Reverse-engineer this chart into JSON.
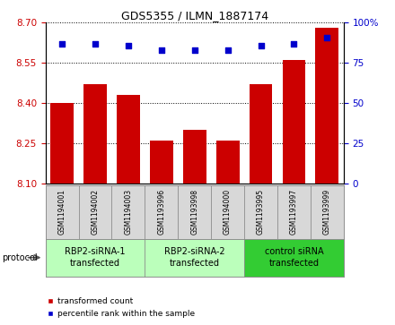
{
  "title": "GDS5355 / ILMN_1887174",
  "samples": [
    "GSM1194001",
    "GSM1194002",
    "GSM1194003",
    "GSM1193996",
    "GSM1193998",
    "GSM1194000",
    "GSM1193995",
    "GSM1193997",
    "GSM1193999"
  ],
  "red_values": [
    8.4,
    8.47,
    8.43,
    8.26,
    8.3,
    8.26,
    8.47,
    8.56,
    8.68
  ],
  "blue_values": [
    87,
    87,
    86,
    83,
    83,
    83,
    86,
    87,
    91
  ],
  "ylim_left": [
    8.1,
    8.7
  ],
  "ylim_right": [
    0,
    100
  ],
  "yticks_left": [
    8.1,
    8.25,
    8.4,
    8.55,
    8.7
  ],
  "yticks_right": [
    0,
    25,
    50,
    75,
    100
  ],
  "bar_color": "#cc0000",
  "dot_color": "#0000cc",
  "groups": [
    {
      "label": "RBP2-siRNA-1\ntransfected",
      "indices": [
        0,
        1,
        2
      ],
      "color": "#bbffbb"
    },
    {
      "label": "RBP2-siRNA-2\ntransfected",
      "indices": [
        3,
        4,
        5
      ],
      "color": "#bbffbb"
    },
    {
      "label": "control siRNA\ntransfected",
      "indices": [
        6,
        7,
        8
      ],
      "color": "#33cc33"
    }
  ],
  "protocol_label": "protocol",
  "legend_red": "transformed count",
  "legend_blue": "percentile rank within the sample",
  "sample_bg": "#d8d8d8",
  "plot_bg": "#ffffff",
  "title_fontsize": 9,
  "tick_fontsize": 7.5,
  "sample_fontsize": 5.5,
  "group_fontsize": 7,
  "legend_fontsize": 6.5
}
